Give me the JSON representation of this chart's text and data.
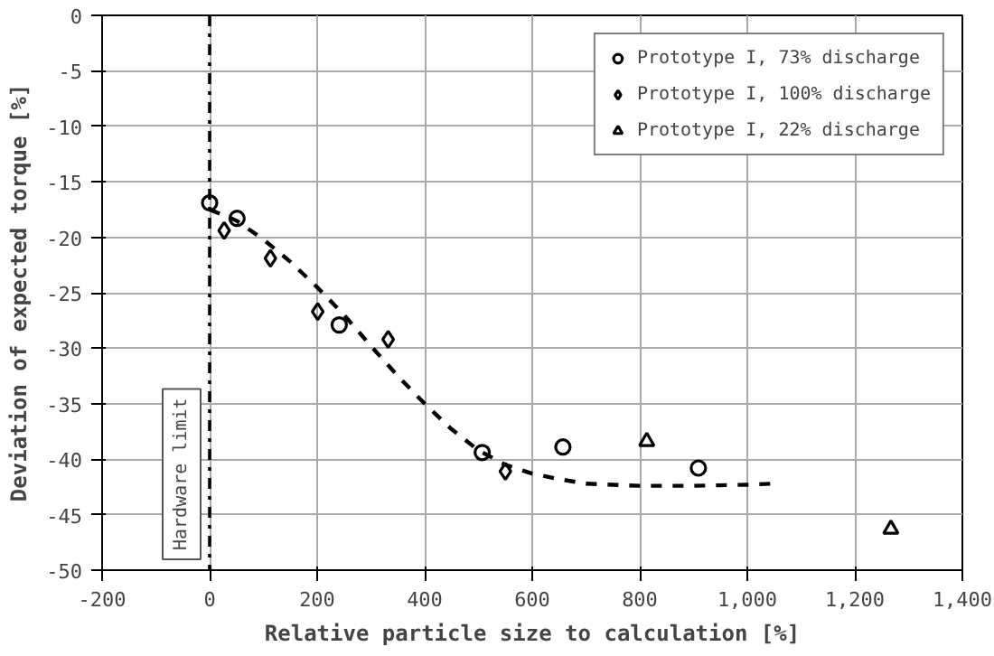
{
  "chart_data": {
    "type": "scatter",
    "xlabel": "Relative particle size to calculation [%]",
    "ylabel": "Deviation of expected torque [%]",
    "xlim": [
      -200,
      1400
    ],
    "ylim": [
      -50,
      0
    ],
    "xticks": [
      -200,
      0,
      200,
      400,
      600,
      800,
      {
        "value": 1000,
        "label": "1,000"
      },
      {
        "value": 1200,
        "label": "1,200"
      },
      {
        "value": 1400,
        "label": "1,400"
      }
    ],
    "yticks": [
      -50,
      -45,
      -40,
      -35,
      -30,
      -25,
      -20,
      -15,
      -10,
      -5,
      0
    ],
    "grid": true,
    "legend": "top right",
    "series": [
      {
        "name": "Prototype I, 73% discharge",
        "color": "#000000",
        "marker": "circle",
        "x": [
          0,
          51,
          241,
          507,
          657,
          909
        ],
        "values": [
          -16.9,
          -18.3,
          -27.9,
          -39.4,
          -38.9,
          -40.8
        ]
      },
      {
        "name": "Prototype I, 100% discharge",
        "color": "#000000",
        "marker": "diamond",
        "x": [
          27,
          113,
          201,
          332,
          550
        ],
        "values": [
          -19.4,
          -21.9,
          -26.7,
          -29.2,
          -41.1
        ]
      },
      {
        "name": "Prototype I, 22% discharge",
        "color": "#000000",
        "marker": "triangle",
        "x": [
          813,
          1267
        ],
        "values": [
          -38.4,
          -46.3
        ]
      },
      {
        "type": "line",
        "color": "#000000",
        "line_style": "dashed",
        "marker": "none",
        "x": [
          0,
          50,
          100,
          150,
          200,
          250,
          300,
          350,
          400,
          450,
          500,
          550,
          600,
          650,
          700,
          800,
          900,
          1000,
          1050
        ],
        "values": [
          -17.5,
          -18.5,
          -20.2,
          -22.2,
          -24.5,
          -27,
          -29.8,
          -32.5,
          -35,
          -37.3,
          -39.2,
          -40.5,
          -41.3,
          -41.8,
          -42.2,
          -42.4,
          -42.4,
          -42.3,
          -42.2
        ]
      }
    ],
    "ref_lines": [
      {
        "axis": "x",
        "value": 0,
        "label": "Hardware limit",
        "color": "#000000",
        "line_style": "dashdot"
      }
    ]
  }
}
